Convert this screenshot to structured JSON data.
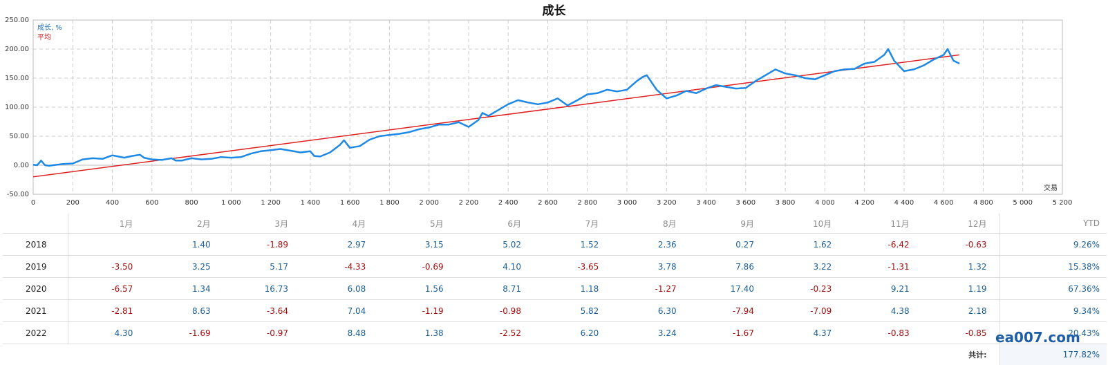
{
  "chart_data": {
    "type": "line",
    "title": "成长",
    "xlabel": "交易",
    "xlim": [
      0,
      5200
    ],
    "ylim": [
      -50,
      250
    ],
    "yticks": [
      "250.00",
      "200.00",
      "150.00",
      "100.00",
      "50.00",
      "0.00",
      "-50.00"
    ],
    "xticks": [
      "0",
      "200",
      "400",
      "600",
      "800",
      "1 000",
      "1 200",
      "1 400",
      "1 600",
      "1 800",
      "2 000",
      "2 200",
      "2 400",
      "2 600",
      "2 800",
      "3 000",
      "3 200",
      "3 400",
      "3 600",
      "3 800",
      "4 000",
      "4 200",
      "4 400",
      "4 600",
      "4 800",
      "5 000",
      "5 200"
    ],
    "grid": true,
    "legend_position": "top-left",
    "colors": {
      "growth": "#1e88e5",
      "average": "#e02020"
    },
    "series": [
      {
        "name": "成长, %",
        "x": [
          0,
          20,
          40,
          60,
          80,
          100,
          150,
          200,
          250,
          300,
          350,
          400,
          430,
          460,
          500,
          540,
          560,
          600,
          650,
          700,
          720,
          750,
          800,
          850,
          900,
          950,
          1000,
          1050,
          1100,
          1150,
          1200,
          1250,
          1300,
          1350,
          1400,
          1420,
          1450,
          1500,
          1550,
          1570,
          1600,
          1650,
          1700,
          1750,
          1800,
          1850,
          1900,
          1950,
          2000,
          2050,
          2100,
          2150,
          2200,
          2250,
          2270,
          2300,
          2350,
          2400,
          2450,
          2500,
          2550,
          2600,
          2650,
          2700,
          2750,
          2800,
          2850,
          2900,
          2950,
          3000,
          3050,
          3080,
          3100,
          3150,
          3200,
          3250,
          3300,
          3350,
          3400,
          3450,
          3500,
          3550,
          3600,
          3650,
          3700,
          3750,
          3800,
          3850,
          3900,
          3950,
          4000,
          4050,
          4100,
          4150,
          4200,
          4250,
          4300,
          4320,
          4350,
          4400,
          4450,
          4500,
          4550,
          4600,
          4620,
          4650,
          4680
        ],
        "y": [
          1,
          0,
          8,
          0,
          -1,
          0,
          2,
          3,
          10,
          12,
          11,
          17,
          15,
          13,
          16,
          18,
          13,
          10,
          9,
          12,
          8,
          8,
          12,
          10,
          11,
          14,
          13,
          14,
          20,
          24,
          26,
          28,
          25,
          22,
          24,
          16,
          15,
          22,
          35,
          43,
          30,
          33,
          44,
          50,
          52,
          54,
          57,
          62,
          65,
          70,
          70,
          74,
          66,
          78,
          90,
          85,
          95,
          105,
          112,
          108,
          105,
          108,
          115,
          103,
          112,
          122,
          124,
          130,
          127,
          130,
          145,
          152,
          155,
          130,
          115,
          120,
          128,
          124,
          132,
          138,
          135,
          132,
          133,
          145,
          155,
          165,
          158,
          155,
          150,
          148,
          155,
          162,
          165,
          166,
          175,
          178,
          190,
          200,
          180,
          162,
          165,
          172,
          182,
          190,
          200,
          180,
          175
        ]
      },
      {
        "name": "平均",
        "x": [
          0,
          4680
        ],
        "y": [
          -20,
          190
        ]
      }
    ]
  },
  "table": {
    "headers": [
      "",
      "1月",
      "2月",
      "3月",
      "4月",
      "5月",
      "6月",
      "7月",
      "8月",
      "9月",
      "10月",
      "11月",
      "12月",
      "YTD"
    ],
    "rows": [
      {
        "year": "2018",
        "values": [
          "",
          "1.40",
          "-1.89",
          "2.97",
          "3.15",
          "5.02",
          "1.52",
          "2.36",
          "0.27",
          "1.62",
          "-6.42",
          "-0.63"
        ],
        "ytd": "9.26%"
      },
      {
        "year": "2019",
        "values": [
          "-3.50",
          "3.25",
          "5.17",
          "-4.33",
          "-0.69",
          "4.10",
          "-3.65",
          "3.78",
          "7.86",
          "3.22",
          "-1.31",
          "1.32"
        ],
        "ytd": "15.38%"
      },
      {
        "year": "2020",
        "values": [
          "-6.57",
          "1.34",
          "16.73",
          "6.08",
          "1.56",
          "8.71",
          "1.18",
          "-1.27",
          "17.40",
          "-0.23",
          "9.21",
          "1.19"
        ],
        "ytd": "67.36%"
      },
      {
        "year": "2021",
        "values": [
          "-2.81",
          "8.63",
          "-3.64",
          "7.04",
          "-1.19",
          "-0.98",
          "5.82",
          "6.30",
          "-7.94",
          "-7.09",
          "4.38",
          "2.18"
        ],
        "ytd": "9.34%"
      },
      {
        "year": "2022",
        "values": [
          "4.30",
          "-1.69",
          "-0.97",
          "8.48",
          "1.38",
          "-2.52",
          "6.20",
          "3.24",
          "-1.67",
          "4.37",
          "-0.83",
          "-0.85"
        ],
        "ytd": "20.43%"
      }
    ],
    "total_label": "共计:",
    "total_value": "177.82%"
  },
  "watermark": "ea007.com"
}
